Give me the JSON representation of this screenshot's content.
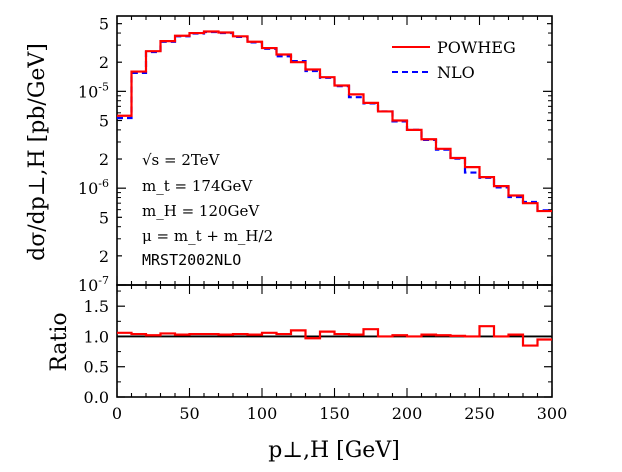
{
  "chart_data": [
    {
      "type": "line",
      "panel": "main",
      "ylabel": "dσ/dp⊥,H [pb/GeV]",
      "xlabel": "",
      "xlim": [
        0,
        300
      ],
      "ylim": [
        1e-07,
        6e-05
      ],
      "yscale": "log",
      "ytick_labels": [
        "5",
        "2",
        "10^-5",
        "5",
        "2",
        "10^-6",
        "5",
        "2",
        "10^-7"
      ],
      "xtick_labels": [
        "0",
        "50",
        "100",
        "150",
        "200",
        "250",
        "300"
      ],
      "bin_edges": [
        0,
        10,
        20,
        30,
        40,
        50,
        60,
        70,
        80,
        90,
        100,
        110,
        120,
        130,
        140,
        150,
        160,
        170,
        180,
        190,
        200,
        210,
        220,
        230,
        240,
        250,
        260,
        270,
        280,
        290,
        300
      ],
      "legend_position": "top-right",
      "series": [
        {
          "name": "POWHEG",
          "color": "#ff0000",
          "style": "solid",
          "values": [
            5.6e-06,
            1.6e-05,
            2.6e-05,
            3.3e-05,
            3.75e-05,
            4e-05,
            4.15e-05,
            4.05e-05,
            3.7e-05,
            3.25e-05,
            2.8e-05,
            2.4e-05,
            2e-05,
            1.68e-05,
            1.4e-05,
            1.15e-05,
            9.3e-06,
            7.6e-06,
            6.2e-06,
            5e-06,
            4e-06,
            3.2e-06,
            2.55e-06,
            2.05e-06,
            1.65e-06,
            1.3e-06,
            1.05e-06,
            8.4e-07,
            7e-07,
            5.8e-07
          ]
        },
        {
          "name": "NLO",
          "color": "#0000ff",
          "style": "dashed",
          "values": [
            5.3e-06,
            1.55e-05,
            2.55e-05,
            3.25e-05,
            3.7e-05,
            3.95e-05,
            4.1e-05,
            4e-05,
            3.65e-05,
            3.2e-05,
            2.75e-05,
            2.3e-05,
            2.05e-05,
            1.62e-05,
            1.38e-05,
            1.13e-05,
            8.7e-06,
            7.5e-06,
            6.2e-06,
            4.9e-06,
            4e-06,
            3.15e-06,
            2.5e-06,
            2.02e-06,
            1.45e-06,
            1.28e-06,
            1.02e-06,
            8.1e-07,
            7.2e-07,
            5.9e-07
          ]
        }
      ],
      "annotations": [
        "√s = 2TeV",
        "m_t = 174GeV",
        "m_H = 120GeV",
        "μ = m_t + m_H/2",
        "MRST2002NLO"
      ]
    },
    {
      "type": "line",
      "panel": "ratio",
      "ylabel": "Ratio",
      "xlabel": "p⊥,H [GeV]",
      "xlim": [
        0,
        300
      ],
      "ylim": [
        0.0,
        1.85
      ],
      "ytick_labels": [
        "1.5",
        "1.0",
        "0.5",
        "0.0"
      ],
      "xtick_labels": [
        "0",
        "50",
        "100",
        "150",
        "200",
        "250",
        "300"
      ],
      "reference_line": 1.0,
      "series": [
        {
          "color": "#ff0000",
          "values": [
            1.06,
            1.04,
            1.02,
            1.05,
            1.03,
            1.04,
            1.04,
            1.03,
            1.04,
            1.03,
            1.06,
            1.04,
            1.1,
            0.97,
            1.08,
            1.04,
            1.03,
            1.12,
            1.0,
            1.02,
            1.0,
            1.03,
            1.02,
            1.01,
            1.0,
            1.17,
            1.0,
            1.03,
            0.85,
            0.95
          ]
        }
      ]
    }
  ]
}
